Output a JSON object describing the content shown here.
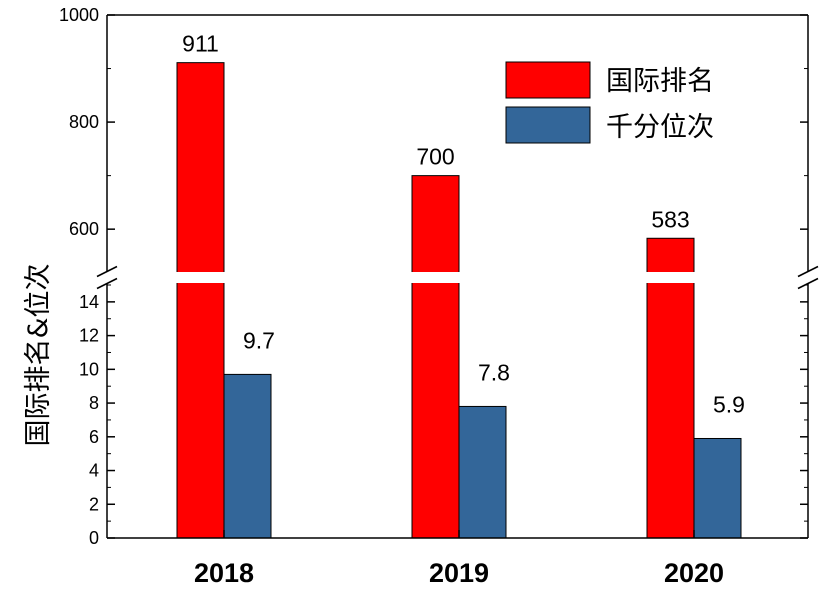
{
  "chart_data": {
    "type": "bar",
    "categories": [
      "2018",
      "2019",
      "2020"
    ],
    "series": [
      {
        "name": "国际排名",
        "values": [
          911,
          700,
          583
        ],
        "labels": [
          "911",
          "700",
          "583"
        ],
        "color": "#ff0000"
      },
      {
        "name": "千分位次",
        "values": [
          9.7,
          7.8,
          5.9
        ],
        "labels": [
          "9.7",
          "7.8",
          "5.9"
        ],
        "color": "#336699"
      }
    ],
    "ylabel": "国际排名&位次",
    "xlabel": "",
    "axis_break": true,
    "upper_axis": {
      "ylim": [
        520,
        1000
      ],
      "ticks": [
        600,
        800,
        1000
      ],
      "tick_labels": [
        "600",
        "800",
        "1000"
      ]
    },
    "lower_axis": {
      "ylim": [
        0,
        15
      ],
      "ticks": [
        0,
        2,
        4,
        6,
        8,
        10,
        12,
        14
      ],
      "tick_labels": [
        "0",
        "2",
        "4",
        "6",
        "8",
        "10",
        "12",
        "14"
      ]
    },
    "legend": {
      "position": "top-right"
    },
    "grid": false
  }
}
